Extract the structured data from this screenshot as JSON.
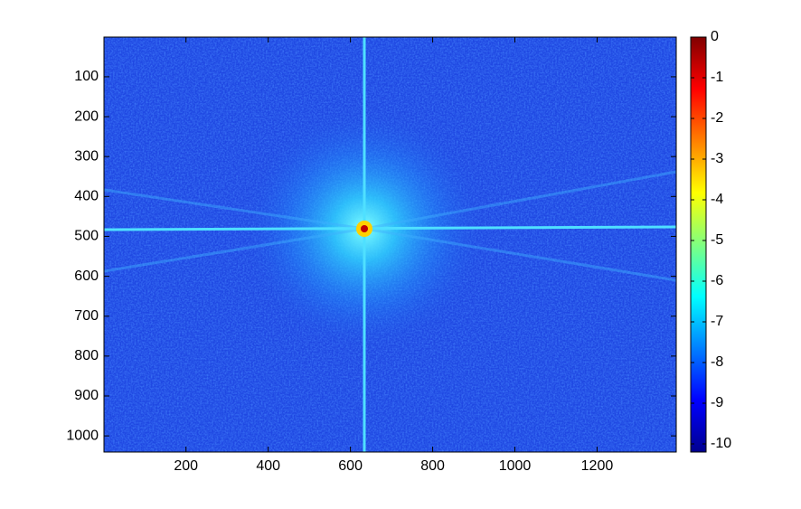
{
  "chart_data": {
    "type": "image",
    "colormap": "jet",
    "xlim": [
      0.5,
      1392.5
    ],
    "ylim": [
      0.5,
      1040.5
    ],
    "y_reversed": true,
    "xticks": [
      200,
      400,
      600,
      800,
      1000,
      1200
    ],
    "yticks": [
      100,
      200,
      300,
      400,
      500,
      600,
      700,
      800,
      900,
      1000
    ],
    "clim": [
      -10.2,
      0
    ],
    "cticks": [
      0,
      -1,
      -2,
      -3,
      -4,
      -5,
      -6,
      -7,
      -8,
      -9,
      -10
    ]
  }
}
